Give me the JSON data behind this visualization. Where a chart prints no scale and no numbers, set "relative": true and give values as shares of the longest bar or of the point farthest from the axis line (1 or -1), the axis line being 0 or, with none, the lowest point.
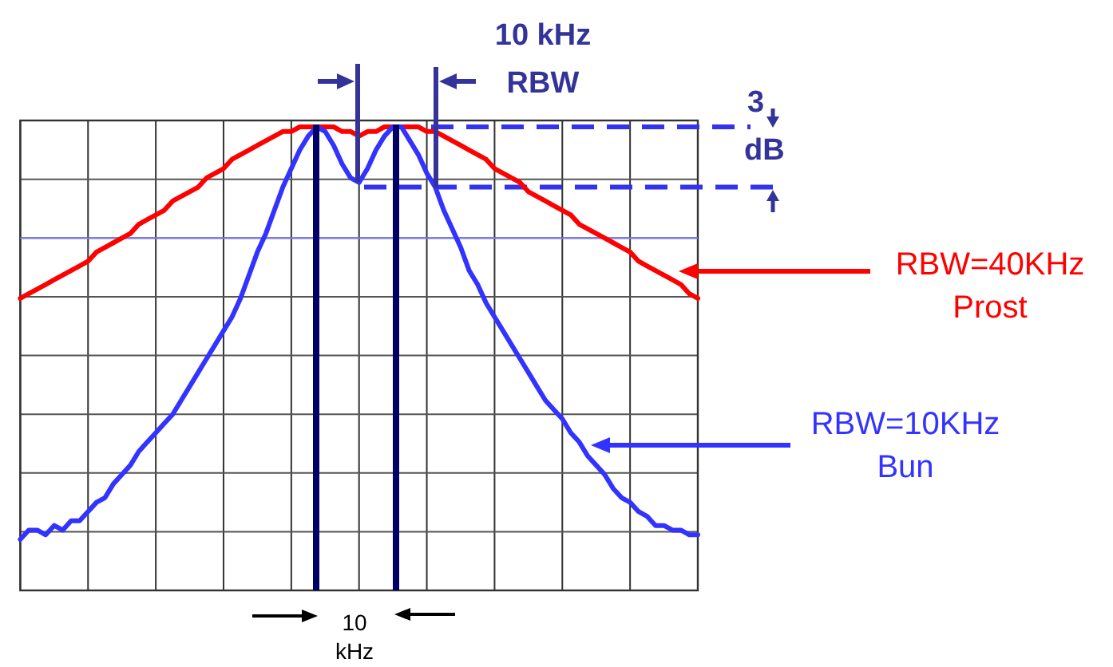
{
  "chart_data": {
    "type": "line",
    "relative": true,
    "grid": true,
    "categories": [
      null,
      null,
      null,
      null,
      null,
      null,
      null,
      null,
      null,
      null,
      null,
      null,
      null,
      null,
      null,
      null,
      null,
      null,
      null,
      null,
      null,
      null,
      null,
      null,
      null,
      null,
      null,
      null,
      null,
      null,
      null,
      null,
      null,
      null,
      null,
      null,
      null,
      null,
      null,
      null,
      null,
      null,
      null,
      null,
      null,
      null,
      null,
      null,
      null,
      null,
      null,
      null,
      null,
      null,
      null,
      null,
      null,
      null,
      null,
      null,
      null,
      null,
      null,
      null,
      null,
      null,
      null,
      null,
      null,
      null,
      null,
      null,
      null,
      null,
      null,
      null,
      null,
      null,
      null,
      null,
      null
    ],
    "series": [
      {
        "name": "RBW=40KHz Prost",
        "color": "#ff0000",
        "values": [
          0.63,
          0.64,
          0.65,
          0.66,
          0.67,
          0.68,
          0.69,
          0.7,
          0.71,
          0.73,
          0.74,
          0.75,
          0.76,
          0.77,
          0.79,
          0.8,
          0.81,
          0.82,
          0.84,
          0.85,
          0.86,
          0.87,
          0.89,
          0.9,
          0.91,
          0.93,
          0.94,
          0.95,
          0.96,
          0.97,
          0.98,
          0.99,
          0.99,
          1,
          1,
          1,
          1,
          1,
          0.99,
          0.99,
          0.98,
          0.99,
          0.99,
          1,
          1,
          1,
          1,
          1,
          0.99,
          0.99,
          0.98,
          0.97,
          0.96,
          0.95,
          0.94,
          0.93,
          0.91,
          0.9,
          0.89,
          0.88,
          0.86,
          0.85,
          0.84,
          0.83,
          0.82,
          0.81,
          0.79,
          0.78,
          0.77,
          0.76,
          0.75,
          0.74,
          0.73,
          0.71,
          0.7,
          0.69,
          0.68,
          0.67,
          0.66,
          0.64,
          0.63
        ]
      },
      {
        "name": "RBW=10KHz Bun",
        "color": "#3333ff",
        "values": [
          0.11,
          0.13,
          0.13,
          0.12,
          0.14,
          0.13,
          0.15,
          0.15,
          0.17,
          0.19,
          0.2,
          0.23,
          0.25,
          0.27,
          0.3,
          0.32,
          0.34,
          0.36,
          0.38,
          0.41,
          0.44,
          0.47,
          0.5,
          0.53,
          0.56,
          0.59,
          0.63,
          0.68,
          0.73,
          0.77,
          0.82,
          0.87,
          0.91,
          0.95,
          0.98,
          1,
          0.99,
          0.96,
          0.92,
          0.89,
          0.88,
          0.91,
          0.95,
          0.98,
          1,
          1,
          0.97,
          0.94,
          0.9,
          0.87,
          0.82,
          0.78,
          0.74,
          0.69,
          0.66,
          0.62,
          0.59,
          0.56,
          0.53,
          0.5,
          0.47,
          0.44,
          0.41,
          0.39,
          0.37,
          0.34,
          0.32,
          0.29,
          0.27,
          0.25,
          0.22,
          0.2,
          0.19,
          0.17,
          0.16,
          0.14,
          0.14,
          0.13,
          0.13,
          0.12,
          0.12
        ]
      }
    ],
    "ref_lines": [
      {
        "axis": "y",
        "value": 1,
        "color": "#3333ee",
        "line_style": "dashed"
      },
      {
        "axis": "y",
        "value": 0.87,
        "color": "#3333ee",
        "line_style": "dashed"
      },
      {
        "axis": "y",
        "value": 0.76,
        "color": "#8080ff",
        "line_style": "solid"
      }
    ],
    "annotations": [
      "10 kHz RBW",
      "3 dB",
      "10 kHz"
    ]
  }
}
